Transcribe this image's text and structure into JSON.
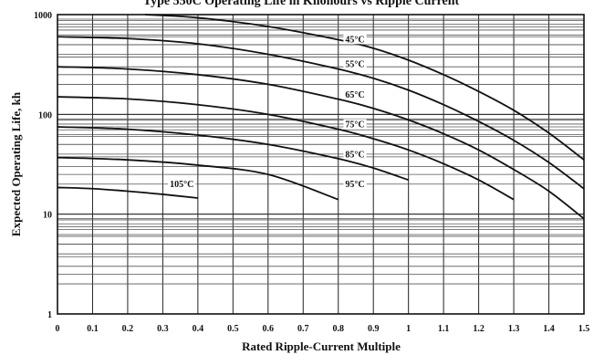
{
  "chart_data": {
    "type": "line",
    "title": "Type 550C Operating Life in Kilohours vs Ripple Current",
    "xlabel": "Rated Ripple-Current Multiple",
    "ylabel": "Expected Operating Life, kh",
    "xlim": [
      0,
      1.5
    ],
    "ylim": [
      1,
      1000
    ],
    "yscale": "log",
    "grid": true,
    "x_ticks": [
      "0",
      "0.1",
      "0.2",
      "0.3",
      "0.4",
      "0.5",
      "0.6",
      "0.7",
      "0.8",
      "0.9",
      "1",
      "1.1",
      "1.2",
      "1.3",
      "1.4",
      "1.5"
    ],
    "y_ticks": [
      "1",
      "10",
      "100",
      "1000"
    ],
    "series": [
      {
        "name": "45°C",
        "x": [
          0.25,
          0.4,
          0.6,
          0.8,
          0.9,
          1.0,
          1.1,
          1.2,
          1.3,
          1.4,
          1.5
        ],
        "y": [
          1000,
          930,
          760,
          560,
          460,
          350,
          250,
          170,
          110,
          65,
          35
        ]
      },
      {
        "name": "55°C",
        "x": [
          0,
          0.2,
          0.4,
          0.6,
          0.8,
          0.9,
          1.0,
          1.1,
          1.2,
          1.3,
          1.4,
          1.5
        ],
        "y": [
          600,
          575,
          510,
          400,
          285,
          230,
          175,
          125,
          85,
          55,
          33,
          18
        ]
      },
      {
        "name": "65°C",
        "x": [
          0,
          0.2,
          0.4,
          0.6,
          0.8,
          0.9,
          1.0,
          1.1,
          1.2,
          1.3,
          1.4,
          1.5
        ],
        "y": [
          300,
          285,
          250,
          200,
          142,
          115,
          88,
          64,
          44,
          28,
          17,
          9
        ]
      },
      {
        "name": "75°C",
        "x": [
          0,
          0.2,
          0.4,
          0.6,
          0.8,
          0.9,
          1.0,
          1.1,
          1.2,
          1.3
        ],
        "y": [
          150,
          143,
          125,
          100,
          71,
          57,
          44,
          32,
          22,
          14
        ]
      },
      {
        "name": "85°C",
        "x": [
          0,
          0.2,
          0.4,
          0.6,
          0.8,
          0.9,
          1.0
        ],
        "y": [
          75,
          71,
          62,
          50,
          36,
          29,
          22
        ]
      },
      {
        "name": "95°C",
        "x": [
          0,
          0.2,
          0.4,
          0.6,
          0.8
        ],
        "y": [
          37,
          35,
          31,
          25,
          14
        ]
      },
      {
        "name": "105°C",
        "x": [
          0,
          0.1,
          0.2,
          0.3,
          0.4
        ],
        "y": [
          18.5,
          18,
          17,
          15.8,
          14.5
        ]
      }
    ],
    "annotations": [
      {
        "text": "45°C",
        "x": 0.82,
        "y": 540
      },
      {
        "text": "55°C",
        "x": 0.82,
        "y": 305
      },
      {
        "text": "65°C",
        "x": 0.82,
        "y": 150
      },
      {
        "text": "75°C",
        "x": 0.82,
        "y": 76
      },
      {
        "text": "85°C",
        "x": 0.82,
        "y": 38
      },
      {
        "text": "95°C",
        "x": 0.82,
        "y": 19
      },
      {
        "text": "105°C",
        "x": 0.32,
        "y": 19
      }
    ]
  }
}
